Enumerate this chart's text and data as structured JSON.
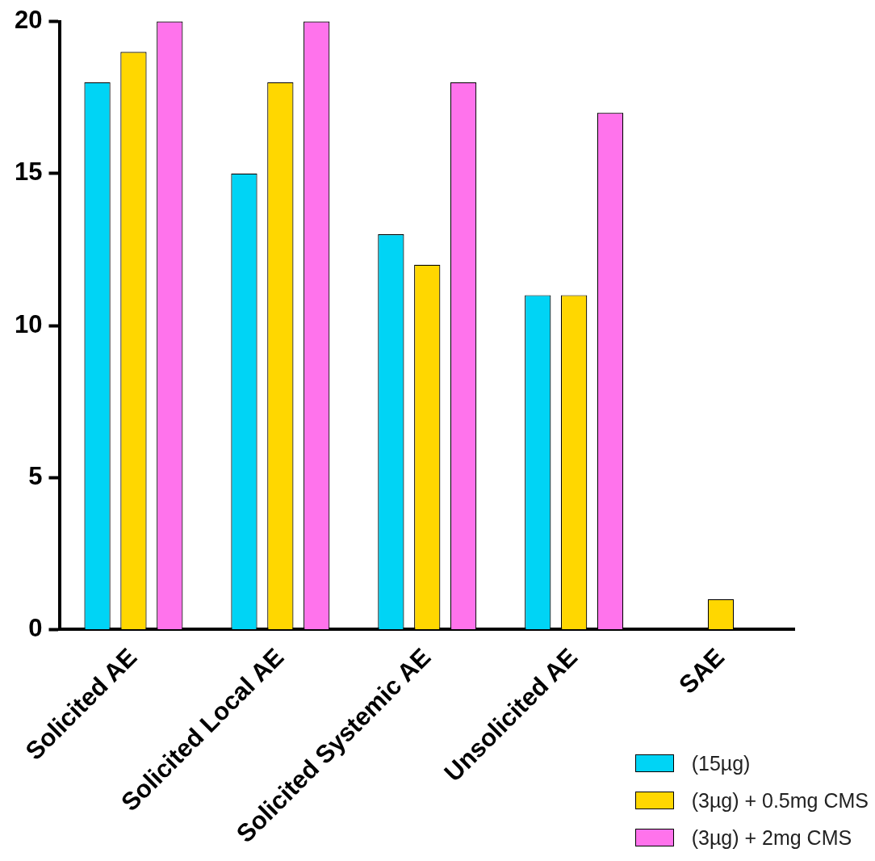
{
  "chart_data": {
    "type": "bar",
    "categories": [
      "Solicited AE",
      "Solicited Local AE",
      "Solicited Systemic AE",
      "Unsolicited AE",
      "SAE"
    ],
    "series": [
      {
        "name": "(15µg)",
        "color": "#00d4f5",
        "values": [
          18,
          15,
          13,
          11,
          0
        ]
      },
      {
        "name": "(3µg) + 0.5mg CMS",
        "color": "#ffd700",
        "values": [
          19,
          18,
          12,
          11,
          1
        ]
      },
      {
        "name": "(3µg)  + 2mg CMS",
        "color": "#ff73ec",
        "values": [
          20,
          20,
          18,
          17,
          0
        ]
      }
    ],
    "ylim": [
      0,
      20
    ],
    "yticks": [
      0,
      5,
      10,
      15,
      20
    ],
    "grid": false,
    "legend": "bottom right"
  }
}
